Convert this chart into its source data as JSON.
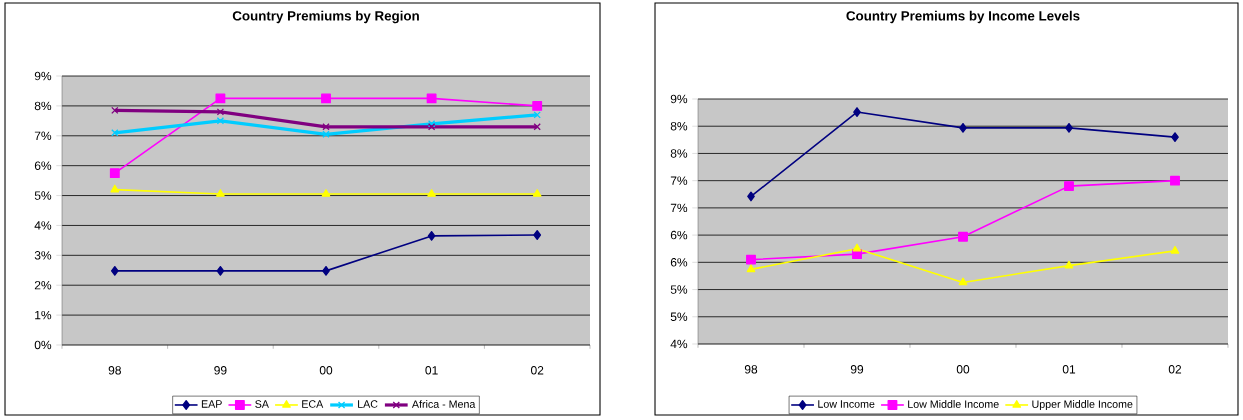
{
  "chart_data": [
    {
      "type": "line",
      "title": "Country Premiums by Region",
      "categories": [
        "98",
        "99",
        "00",
        "01",
        "02"
      ],
      "ylim": [
        0,
        9
      ],
      "yticks": [
        {
          "value": 0,
          "label": "0%"
        },
        {
          "value": 1,
          "label": "1%"
        },
        {
          "value": 2,
          "label": "2%"
        },
        {
          "value": 3,
          "label": "3%"
        },
        {
          "value": 4,
          "label": "4%"
        },
        {
          "value": 5,
          "label": "5%"
        },
        {
          "value": 6,
          "label": "6%"
        },
        {
          "value": 7,
          "label": "7%"
        },
        {
          "value": 8,
          "label": "8%"
        },
        {
          "value": 9,
          "label": "9%"
        }
      ],
      "grid": "y",
      "legend": "bottom",
      "series": [
        {
          "name": "EAP",
          "color": "#000080",
          "marker": "diamond",
          "values": [
            2.48,
            2.48,
            2.48,
            3.65,
            3.68
          ]
        },
        {
          "name": "SA",
          "color": "#ff00ff",
          "marker": "square",
          "values": [
            5.75,
            8.25,
            8.25,
            8.25,
            8.0
          ]
        },
        {
          "name": "ECA",
          "color": "#ffff00",
          "marker": "triangle",
          "values": [
            5.2,
            5.05,
            5.05,
            5.05,
            5.05
          ]
        },
        {
          "name": "LAC",
          "color": "#00ccff",
          "marker": "cross",
          "values": [
            7.1,
            7.5,
            7.05,
            7.4,
            7.7
          ]
        },
        {
          "name": "Africa - Mena",
          "color": "#800080",
          "marker": "cross",
          "values": [
            7.85,
            7.8,
            7.3,
            7.3,
            7.3
          ]
        }
      ]
    },
    {
      "type": "line",
      "title": "Country Premiums by Income Levels",
      "categories": [
        "98",
        "99",
        "00",
        "01",
        "02"
      ],
      "ylim": [
        4,
        8.5
      ],
      "yticks": [
        {
          "value": 4,
          "label": "4%"
        },
        {
          "value": 4.5,
          "label": "5%"
        },
        {
          "value": 5,
          "label": "5%"
        },
        {
          "value": 5.5,
          "label": "6%"
        },
        {
          "value": 6,
          "label": "6%"
        },
        {
          "value": 6.5,
          "label": "7%"
        },
        {
          "value": 7,
          "label": "7%"
        },
        {
          "value": 7.5,
          "label": "8%"
        },
        {
          "value": 8,
          "label": "8%"
        },
        {
          "value": 8.5,
          "label": "9%"
        }
      ],
      "grid": "y",
      "legend": "bottom",
      "series": [
        {
          "name": "Low Income",
          "color": "#000080",
          "marker": "diamond",
          "values": [
            6.71,
            8.26,
            7.97,
            7.97,
            7.8
          ]
        },
        {
          "name": "Low Middle Income",
          "color": "#ff00ff",
          "marker": "square",
          "values": [
            5.55,
            5.65,
            5.97,
            6.9,
            7.0
          ]
        },
        {
          "name": "Upper Middle Income",
          "color": "#ffff00",
          "marker": "triangle",
          "values": [
            5.37,
            5.75,
            5.13,
            5.44,
            5.71
          ]
        }
      ]
    }
  ]
}
